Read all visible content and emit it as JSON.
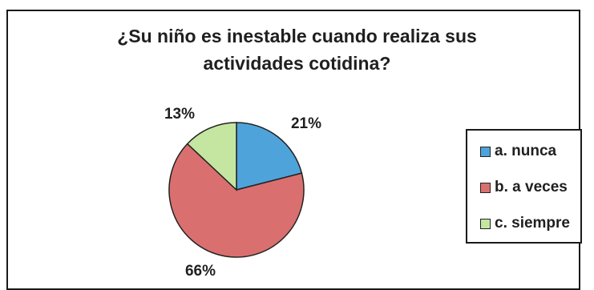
{
  "chart_data": {
    "type": "pie",
    "title": "¿Su niño es inestable cuando realiza sus actividades cotidina?",
    "title_lines": [
      "¿Su niño es inestable cuando realiza sus",
      "actividades cotidina?"
    ],
    "categories": [
      "a. nunca",
      "b. a veces",
      "c. siempre"
    ],
    "values": [
      21,
      66,
      13
    ],
    "labels": [
      "21%",
      "66%",
      "13%"
    ],
    "colors": [
      "#4fa3db",
      "#d9706f",
      "#c5e6a0"
    ],
    "legend": "right"
  }
}
